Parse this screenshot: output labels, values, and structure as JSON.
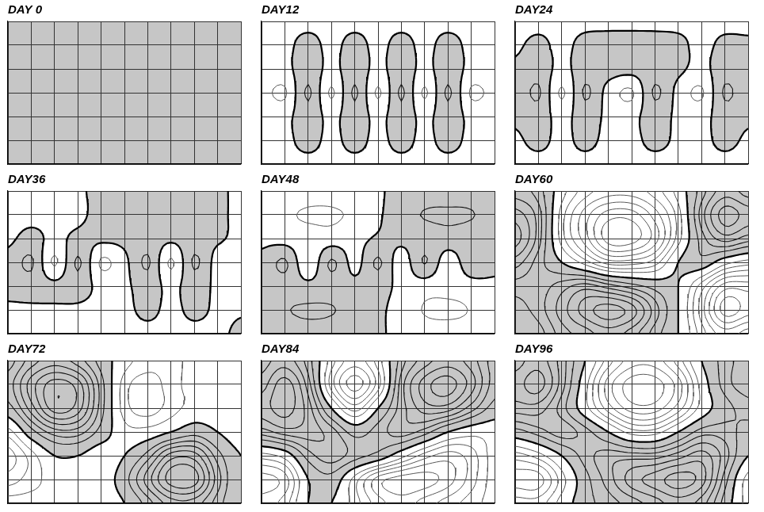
{
  "chart_data": [
    {
      "type": "contour",
      "title": "DAY 0",
      "x": [
        0,
        1,
        2,
        3,
        4,
        5,
        6,
        7,
        8,
        9,
        10
      ],
      "y": [
        6,
        5,
        4,
        3,
        2,
        1,
        0
      ],
      "z": [
        [
          0.2,
          0.2,
          0.2,
          0.2,
          0.2,
          0.2,
          0.2,
          0.2,
          0.2,
          0.2,
          0.2
        ],
        [
          0.2,
          0.2,
          0.2,
          0.2,
          0.2,
          0.2,
          0.2,
          0.2,
          0.2,
          0.2,
          0.2
        ],
        [
          0.2,
          0.2,
          0.2,
          0.2,
          0.2,
          0.2,
          0.2,
          0.2,
          0.2,
          0.2,
          0.2
        ],
        [
          0.2,
          0.2,
          0.2,
          0.2,
          0.2,
          0.2,
          0.2,
          0.2,
          0.2,
          0.2,
          0.2
        ],
        [
          0.2,
          0.2,
          0.2,
          0.2,
          0.2,
          0.2,
          0.2,
          0.2,
          0.2,
          0.2,
          0.2
        ],
        [
          0.2,
          0.2,
          0.2,
          0.2,
          0.2,
          0.2,
          0.2,
          0.2,
          0.2,
          0.2,
          0.2
        ],
        [
          0.2,
          0.2,
          0.2,
          0.2,
          0.2,
          0.2,
          0.2,
          0.2,
          0.2,
          0.2,
          0.2
        ]
      ],
      "levels": [
        -7.5,
        -6.5,
        -5.5,
        -4.5,
        -3.5,
        -2.5,
        -1.5,
        0,
        1.5,
        2.5,
        3.5,
        4.5,
        5.5,
        6.5,
        7.5
      ],
      "xlim": [
        0,
        10
      ],
      "ylim": [
        0,
        6
      ],
      "xticks": [
        0,
        1,
        2,
        3,
        4,
        5,
        6,
        7,
        8,
        9,
        10
      ],
      "yticks": [
        0,
        1,
        2,
        3,
        4,
        5,
        6
      ],
      "grid": true,
      "tick_labels": false
    },
    {
      "type": "contour",
      "title": "DAY12",
      "x": [
        0,
        1,
        2,
        3,
        4,
        5,
        6,
        7,
        8,
        9,
        10
      ],
      "y": [
        6,
        5,
        4,
        3,
        2,
        1,
        0
      ],
      "z": [
        [
          -0.3,
          -0.3,
          -0.3,
          -0.3,
          -0.3,
          -0.3,
          -0.3,
          -0.3,
          -0.3,
          -0.3,
          -0.3
        ],
        [
          -0.3,
          -0.3,
          0.4,
          -0.3,
          0.4,
          -0.3,
          0.4,
          -0.3,
          0.4,
          -0.3,
          -0.3
        ],
        [
          -0.3,
          -0.4,
          0.8,
          -0.4,
          0.8,
          -0.4,
          0.8,
          -0.4,
          0.8,
          -0.4,
          -0.3
        ],
        [
          -1.0,
          -1.7,
          1.7,
          -1.7,
          1.7,
          -1.7,
          1.7,
          -1.7,
          1.7,
          -1.7,
          -1.0
        ],
        [
          -0.3,
          -0.4,
          0.8,
          -0.4,
          0.8,
          -0.4,
          0.8,
          -0.4,
          0.8,
          -0.4,
          -0.3
        ],
        [
          -0.3,
          -0.3,
          0.4,
          -0.3,
          0.4,
          -0.3,
          0.4,
          -0.3,
          0.4,
          -0.3,
          -0.3
        ],
        [
          -0.3,
          -0.3,
          -0.3,
          -0.3,
          -0.3,
          -0.3,
          -0.3,
          -0.3,
          -0.3,
          -0.3,
          -0.3
        ]
      ],
      "levels": [
        -7.5,
        -6.5,
        -5.5,
        -4.5,
        -3.5,
        -2.5,
        -1.5,
        0,
        1.5,
        2.5,
        3.5,
        4.5,
        5.5,
        6.5,
        7.5
      ],
      "xlim": [
        0,
        10
      ],
      "ylim": [
        0,
        6
      ],
      "xticks": [
        0,
        1,
        2,
        3,
        4,
        5,
        6,
        7,
        8,
        9,
        10
      ],
      "yticks": [
        0,
        1,
        2,
        3,
        4,
        5,
        6
      ],
      "grid": true,
      "tick_labels": false
    },
    {
      "type": "contour",
      "title": "DAY24",
      "x": [
        0,
        1,
        2,
        3,
        4,
        5,
        6,
        7,
        8,
        9,
        10
      ],
      "y": [
        6,
        5,
        4,
        3,
        2,
        1,
        0
      ],
      "z": [
        [
          -0.3,
          -0.3,
          -0.3,
          -0.3,
          -0.3,
          -0.3,
          -0.3,
          -0.3,
          -0.3,
          -0.3,
          -0.3
        ],
        [
          -0.2,
          0.3,
          -0.3,
          0.4,
          0.5,
          0.5,
          0.5,
          0.3,
          -0.3,
          0.3,
          0.2
        ],
        [
          0.2,
          0.8,
          -0.4,
          0.8,
          0.6,
          0.5,
          0.8,
          0.3,
          -0.4,
          0.8,
          0.3
        ],
        [
          0.3,
          1.7,
          -1.7,
          1.7,
          -0.6,
          -1.7,
          1.7,
          -0.5,
          -1.7,
          1.7,
          0.3
        ],
        [
          0.2,
          0.7,
          -0.5,
          0.7,
          -0.3,
          -0.4,
          0.7,
          -0.3,
          -0.5,
          0.7,
          0.2
        ],
        [
          -0.2,
          0.3,
          -0.3,
          0.3,
          -0.3,
          -0.3,
          0.3,
          -0.2,
          -0.3,
          0.3,
          -0.2
        ],
        [
          -0.3,
          -0.3,
          -0.3,
          -0.3,
          -0.3,
          -0.3,
          -0.3,
          -0.3,
          -0.3,
          -0.3,
          -0.3
        ]
      ],
      "levels": [
        -7.5,
        -6.5,
        -5.5,
        -4.5,
        -3.5,
        -2.5,
        -1.5,
        0,
        1.5,
        2.5,
        3.5,
        4.5,
        5.5,
        6.5,
        7.5
      ],
      "xlim": [
        0,
        10
      ],
      "ylim": [
        0,
        6
      ],
      "xticks": [
        0,
        1,
        2,
        3,
        4,
        5,
        6,
        7,
        8,
        9,
        10
      ],
      "yticks": [
        0,
        1,
        2,
        3,
        4,
        5,
        6
      ],
      "grid": true,
      "tick_labels": false
    },
    {
      "type": "contour",
      "title": "DAY36",
      "x": [
        0,
        1,
        2,
        3,
        4,
        5,
        6,
        7,
        8,
        9,
        10
      ],
      "y": [
        6,
        5,
        4,
        3,
        2,
        1,
        0
      ],
      "z": [
        [
          -0.3,
          -0.3,
          -0.3,
          -0.2,
          0.4,
          0.6,
          0.7,
          0.7,
          0.6,
          0.2,
          -0.2
        ],
        [
          -0.4,
          -0.4,
          -0.4,
          -0.3,
          0.5,
          0.9,
          1.0,
          1.0,
          0.9,
          0.3,
          -0.3
        ],
        [
          -0.3,
          0.5,
          -0.4,
          0.4,
          0.3,
          0.4,
          0.8,
          0.3,
          0.8,
          0.2,
          -0.3
        ],
        [
          0.5,
          1.7,
          -1.7,
          1.7,
          -1.7,
          -0.4,
          1.7,
          -1.7,
          1.7,
          -0.6,
          -0.4
        ],
        [
          0.4,
          0.7,
          0.4,
          0.7,
          -0.4,
          -0.3,
          0.7,
          -0.4,
          0.7,
          -0.3,
          -0.3
        ],
        [
          -0.2,
          -0.2,
          -0.2,
          -0.2,
          -0.3,
          -0.3,
          0.3,
          -0.3,
          0.3,
          -0.2,
          -0.1
        ],
        [
          -0.3,
          -0.3,
          -0.3,
          -0.3,
          -0.3,
          -0.3,
          -0.3,
          -0.3,
          -0.3,
          -0.2,
          0.2
        ]
      ],
      "levels": [
        -7.5,
        -6.5,
        -5.5,
        -4.5,
        -3.5,
        -2.5,
        -1.5,
        0,
        1.5,
        2.5,
        3.5,
        4.5,
        5.5,
        6.5,
        7.5
      ],
      "xlim": [
        0,
        10
      ],
      "ylim": [
        0,
        6
      ],
      "xticks": [
        0,
        1,
        2,
        3,
        4,
        5,
        6,
        7,
        8,
        9,
        10
      ],
      "yticks": [
        0,
        1,
        2,
        3,
        4,
        5,
        6
      ],
      "grid": true,
      "tick_labels": false
    },
    {
      "type": "contour",
      "title": "DAY48",
      "x": [
        0,
        1,
        2,
        3,
        4,
        5,
        6,
        7,
        8,
        9,
        10
      ],
      "y": [
        6,
        5,
        4,
        3,
        2,
        1,
        0
      ],
      "z": [
        [
          -0.3,
          -0.6,
          -0.8,
          -0.8,
          -0.6,
          -0.2,
          0.5,
          0.7,
          0.8,
          0.7,
          0.5
        ],
        [
          -0.4,
          -1.2,
          -1.7,
          -1.7,
          -1.2,
          -0.2,
          0.8,
          1.6,
          1.7,
          1.6,
          0.8
        ],
        [
          -0.3,
          -0.6,
          -0.9,
          -0.8,
          -0.5,
          0.2,
          0.4,
          0.7,
          0.9,
          0.7,
          0.4
        ],
        [
          0.4,
          1.7,
          -1.2,
          1.7,
          -0.5,
          1.7,
          -0.8,
          1.6,
          -0.9,
          1.0,
          0.3
        ],
        [
          0.5,
          0.9,
          0.4,
          0.8,
          0.4,
          0.6,
          -0.4,
          -0.8,
          -1.0,
          -0.6,
          -0.2
        ],
        [
          0.8,
          1.4,
          1.7,
          1.6,
          0.9,
          0.3,
          -0.6,
          -1.6,
          -1.8,
          -1.4,
          -0.4
        ],
        [
          0.5,
          0.8,
          0.9,
          0.8,
          0.6,
          0.2,
          -0.4,
          -0.8,
          -0.9,
          -0.8,
          -0.3
        ]
      ],
      "levels": [
        -7.5,
        -6.5,
        -5.5,
        -4.5,
        -3.5,
        -2.5,
        -1.5,
        0,
        1.5,
        2.5,
        3.5,
        4.5,
        5.5,
        6.5,
        7.5
      ],
      "xlim": [
        0,
        10
      ],
      "ylim": [
        0,
        6
      ],
      "xticks": [
        0,
        1,
        2,
        3,
        4,
        5,
        6,
        7,
        8,
        9,
        10
      ],
      "yticks": [
        0,
        1,
        2,
        3,
        4,
        5,
        6
      ],
      "grid": true,
      "tick_labels": false
    },
    {
      "type": "contour",
      "title": "DAY60",
      "x": [
        0,
        1,
        2,
        3,
        4,
        5,
        6,
        7,
        8,
        9,
        10
      ],
      "y": [
        6,
        5,
        4,
        3,
        2,
        1,
        0
      ],
      "z": [
        [
          3,
          2,
          -1,
          -3,
          -4,
          -4,
          -3,
          -1,
          2,
          4,
          3
        ],
        [
          5,
          3,
          -2,
          -5,
          -7,
          -7,
          -5,
          -2,
          3,
          6,
          5
        ],
        [
          6,
          3,
          -2,
          -5,
          -8,
          -8,
          -6,
          -2,
          2,
          4,
          3
        ],
        [
          4,
          2,
          0,
          -2,
          -4,
          -4,
          -3,
          0,
          1,
          -1,
          -2
        ],
        [
          2,
          2,
          3,
          4,
          3,
          2,
          1,
          0,
          -3,
          -6,
          -6
        ],
        [
          1,
          2,
          4,
          6,
          7,
          6,
          3,
          0,
          -4,
          -8,
          -7
        ],
        [
          0,
          1,
          3,
          4,
          5,
          4,
          2,
          0,
          -3,
          -5,
          -4
        ]
      ],
      "levels": [
        -7.5,
        -6.5,
        -5.5,
        -4.5,
        -3.5,
        -2.5,
        -1.5,
        0,
        1.5,
        2.5,
        3.5,
        4.5,
        5.5,
        6.5,
        7.5
      ],
      "xlim": [
        0,
        10
      ],
      "ylim": [
        0,
        6
      ],
      "xticks": [
        0,
        1,
        2,
        3,
        4,
        5,
        6,
        7,
        8,
        9,
        10
      ],
      "yticks": [
        0,
        1,
        2,
        3,
        4,
        5,
        6
      ],
      "grid": true,
      "tick_labels": false
    },
    {
      "type": "contour",
      "title": "DAY72",
      "x": [
        0,
        1,
        2,
        3,
        4,
        5,
        6,
        7,
        8,
        9,
        10
      ],
      "y": [
        6,
        5,
        4,
        3,
        2,
        1,
        0
      ],
      "z": [
        [
          1,
          3,
          4,
          3,
          1,
          -1,
          -2,
          -2,
          -1,
          -1,
          -1
        ],
        [
          2,
          5,
          7,
          6,
          2,
          -2,
          -3,
          -2,
          -1,
          -1,
          -1
        ],
        [
          1,
          4,
          7,
          6,
          2,
          -2,
          -3,
          -2,
          -1,
          -1,
          -1
        ],
        [
          -2,
          1,
          3,
          3,
          1,
          -1,
          -1,
          0,
          1,
          0,
          -1
        ],
        [
          -4,
          -2,
          0,
          0,
          -1,
          0,
          2,
          5,
          5,
          2,
          0
        ],
        [
          -3,
          -2,
          -1,
          -1,
          -1,
          1,
          4,
          7,
          7,
          3,
          0
        ],
        [
          -1,
          -1,
          -1,
          -1,
          -1,
          0,
          2,
          4,
          4,
          2,
          0
        ]
      ],
      "levels": [
        -7.5,
        -6.5,
        -5.5,
        -4.5,
        -3.5,
        -2.5,
        -1.5,
        0,
        1.5,
        2.5,
        3.5,
        4.5,
        5.5,
        6.5,
        7.5
      ],
      "xlim": [
        0,
        10
      ],
      "ylim": [
        0,
        6
      ],
      "xticks": [
        0,
        1,
        2,
        3,
        4,
        5,
        6,
        7,
        8,
        9,
        10
      ],
      "yticks": [
        0,
        1,
        2,
        3,
        4,
        5,
        6
      ],
      "grid": true,
      "tick_labels": false
    },
    {
      "type": "contour",
      "title": "DAY84",
      "x": [
        0,
        1,
        2,
        3,
        4,
        5,
        6,
        7,
        8,
        9,
        10
      ],
      "y": [
        6,
        5,
        4,
        3,
        2,
        1,
        0
      ],
      "z": [
        [
          3,
          4,
          2,
          -2,
          -4,
          -2,
          2,
          4,
          5,
          4,
          2
        ],
        [
          4,
          6,
          3,
          -3,
          -6,
          -3,
          3,
          6,
          7,
          5,
          2
        ],
        [
          5,
          6,
          4,
          0,
          -3,
          0,
          3,
          5,
          5,
          3,
          1
        ],
        [
          3,
          4,
          4,
          3,
          1,
          2,
          3,
          2,
          0,
          -1,
          -1
        ],
        [
          -2,
          -1,
          2,
          3,
          2,
          1,
          -1,
          -3,
          -4,
          -3,
          -1
        ],
        [
          -5,
          -4,
          0,
          1,
          -2,
          -5,
          -6,
          -6,
          -5,
          -3,
          -1
        ],
        [
          -4,
          -3,
          0,
          0,
          -2,
          -4,
          -5,
          -4,
          -3,
          -2,
          -1
        ]
      ],
      "levels": [
        -7.5,
        -6.5,
        -5.5,
        -4.5,
        -3.5,
        -2.5,
        -1.5,
        0,
        1.5,
        2.5,
        3.5,
        4.5,
        5.5,
        6.5,
        7.5
      ],
      "xlim": [
        0,
        10
      ],
      "ylim": [
        0,
        6
      ],
      "xticks": [
        0,
        1,
        2,
        3,
        4,
        5,
        6,
        7,
        8,
        9,
        10
      ],
      "yticks": [
        0,
        1,
        2,
        3,
        4,
        5,
        6
      ],
      "grid": true,
      "tick_labels": false
    },
    {
      "type": "contour",
      "title": "DAY96",
      "x": [
        0,
        1,
        2,
        3,
        4,
        5,
        6,
        7,
        8,
        9,
        10
      ],
      "y": [
        6,
        5,
        4,
        3,
        2,
        1,
        0
      ],
      "z": [
        [
          4,
          5,
          3,
          0,
          -3,
          -5,
          -5,
          -3,
          0,
          2,
          3
        ],
        [
          5,
          6,
          3,
          -1,
          -5,
          -7,
          -7,
          -5,
          -1,
          2,
          3
        ],
        [
          4,
          4,
          2,
          -1,
          -4,
          -6,
          -6,
          -4,
          -1,
          1,
          2
        ],
        [
          1,
          2,
          3,
          2,
          0,
          -2,
          -2,
          0,
          2,
          2,
          1
        ],
        [
          -3,
          -2,
          0,
          2,
          3,
          3,
          3,
          4,
          5,
          3,
          0
        ],
        [
          -5,
          -5,
          -2,
          1,
          3,
          5,
          6,
          7,
          6,
          2,
          -2
        ],
        [
          -3,
          -3,
          -1,
          1,
          2,
          3,
          4,
          5,
          4,
          1,
          -2
        ]
      ],
      "levels": [
        -7.5,
        -6.5,
        -5.5,
        -4.5,
        -3.5,
        -2.5,
        -1.5,
        0,
        1.5,
        2.5,
        3.5,
        4.5,
        5.5,
        6.5,
        7.5
      ],
      "xlim": [
        0,
        10
      ],
      "ylim": [
        0,
        6
      ],
      "xticks": [
        0,
        1,
        2,
        3,
        4,
        5,
        6,
        7,
        8,
        9,
        10
      ],
      "yticks": [
        0,
        1,
        2,
        3,
        4,
        5,
        6
      ],
      "grid": true,
      "tick_labels": false
    }
  ]
}
